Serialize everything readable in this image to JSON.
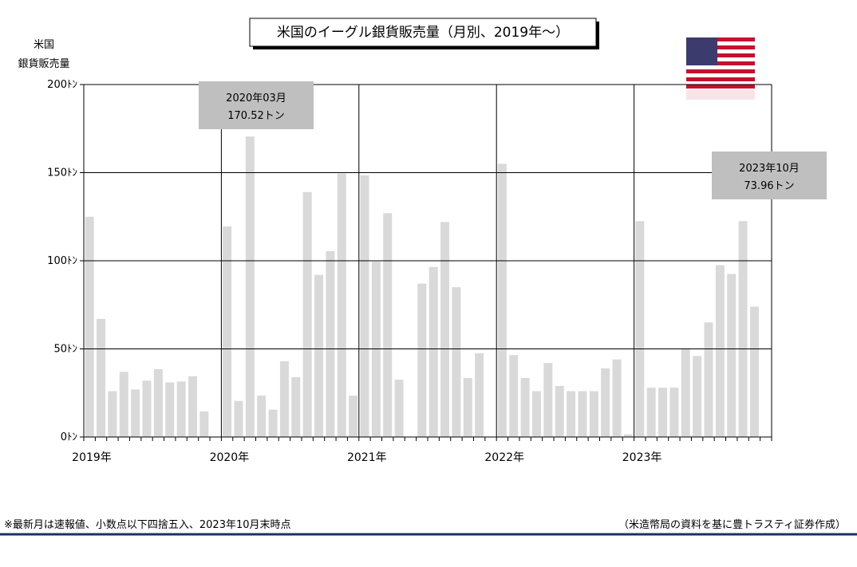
{
  "chart_data": {
    "type": "bar",
    "title": "米国のイーグル銀貨販売量（月別、2019年～）",
    "y_label": [
      "米国",
      "銀貨販売量"
    ],
    "categories": [
      "2019年",
      null,
      null,
      null,
      null,
      null,
      null,
      null,
      null,
      null,
      null,
      null,
      "2020年",
      null,
      null,
      null,
      null,
      null,
      null,
      null,
      null,
      null,
      null,
      null,
      "2021年",
      null,
      null,
      null,
      null,
      null,
      null,
      null,
      null,
      null,
      null,
      null,
      "2022年",
      null,
      null,
      null,
      null,
      null,
      null,
      null,
      null,
      null,
      null,
      null,
      "2023年",
      null,
      null,
      null,
      null,
      null,
      null,
      null,
      null,
      null,
      null
    ],
    "values": [
      125,
      67,
      26,
      37,
      27,
      32,
      38.5,
      31,
      31.5,
      34.5,
      14.5,
      0,
      119.5,
      20.5,
      170.52,
      23.5,
      15.5,
      43,
      34,
      139,
      92,
      105.5,
      149.5,
      23.5,
      148.5,
      99.5,
      127,
      32.5,
      0,
      87,
      96.5,
      122,
      85,
      33.5,
      47.5,
      0,
      155,
      46.5,
      33.5,
      26,
      42,
      29,
      26,
      26,
      26,
      39,
      44,
      1.5,
      122.5,
      28,
      28,
      28,
      50,
      46,
      65,
      97.5,
      92.5,
      122.5,
      73.96
    ],
    "color": "#d9d9d9",
    "ylim": [
      0,
      200
    ],
    "yticks": [
      {
        "value": 0,
        "label": "0ﾄﾝ"
      },
      {
        "value": 50,
        "label": "50ﾄﾝ"
      },
      {
        "value": 100,
        "label": "100ﾄﾝ"
      },
      {
        "value": 150,
        "label": "150ﾄﾝ"
      },
      {
        "value": 200,
        "label": "200ﾄﾝ"
      }
    ],
    "grid": true,
    "annotations": [
      {
        "lines": [
          "2020年03月",
          "170.52トン"
        ]
      },
      {
        "lines": [
          "2023年10月",
          "73.96トン"
        ]
      }
    ],
    "footnote": "※最新月は速報値、小数点以下四捨五入、2023年10月末時点",
    "source": "（米造幣局の資料を基に豊トラスティ証券作成）"
  }
}
